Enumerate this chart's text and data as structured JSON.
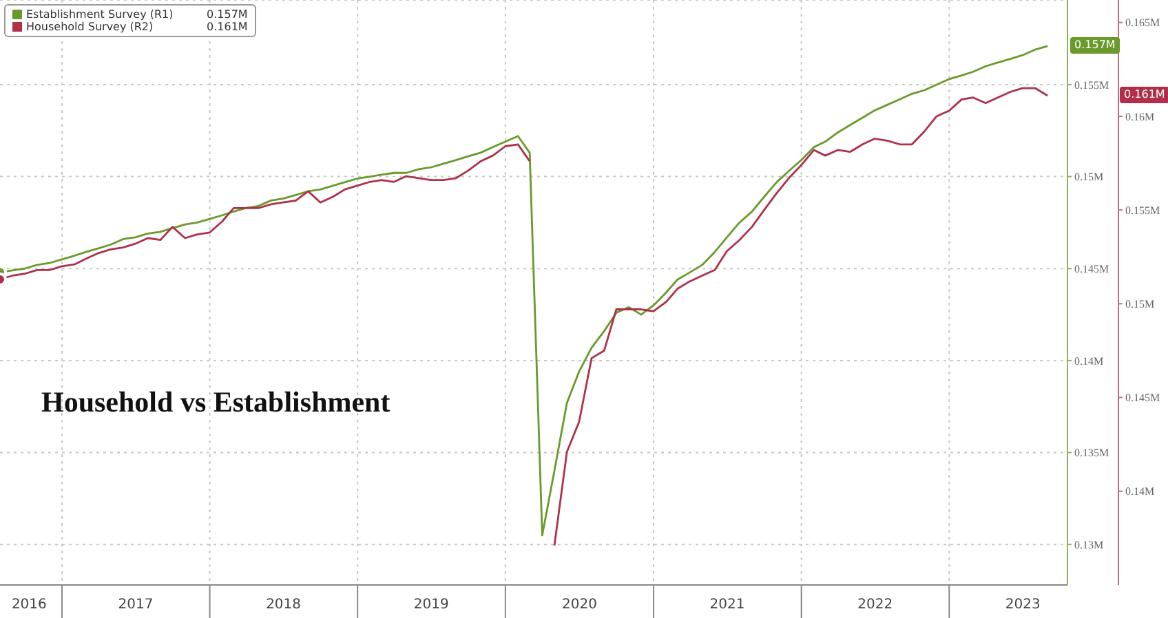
{
  "chart_data": {
    "type": "line",
    "title": "Household vs Establishment",
    "x": [
      "2016-08",
      "2016-09",
      "2016-10",
      "2016-11",
      "2016-12",
      "2017-01",
      "2017-02",
      "2017-03",
      "2017-04",
      "2017-05",
      "2017-06",
      "2017-07",
      "2017-08",
      "2017-09",
      "2017-10",
      "2017-11",
      "2017-12",
      "2018-01",
      "2018-02",
      "2018-03",
      "2018-04",
      "2018-05",
      "2018-06",
      "2018-07",
      "2018-08",
      "2018-09",
      "2018-10",
      "2018-11",
      "2018-12",
      "2019-01",
      "2019-02",
      "2019-03",
      "2019-04",
      "2019-05",
      "2019-06",
      "2019-07",
      "2019-08",
      "2019-09",
      "2019-10",
      "2019-11",
      "2019-12",
      "2020-01",
      "2020-02",
      "2020-03",
      "2020-04",
      "2020-05",
      "2020-06",
      "2020-07",
      "2020-08",
      "2020-09",
      "2020-10",
      "2020-11",
      "2020-12",
      "2021-01",
      "2021-02",
      "2021-03",
      "2021-04",
      "2021-05",
      "2021-06",
      "2021-07",
      "2021-08",
      "2021-09",
      "2021-10",
      "2021-11",
      "2021-12",
      "2022-01",
      "2022-02",
      "2022-03",
      "2022-04",
      "2022-05",
      "2022-06",
      "2022-07",
      "2022-08",
      "2022-09",
      "2022-10",
      "2022-11",
      "2022-12",
      "2023-01",
      "2023-02",
      "2023-03",
      "2023-04",
      "2023-05",
      "2023-06",
      "2023-07",
      "2023-08",
      "2023-09"
    ],
    "series": [
      {
        "name": "Establishment Survey (R1)",
        "color": "#6a9a2a",
        "axis": "y",
        "values": [
          0.1448,
          0.1449,
          0.145,
          0.1452,
          0.1453,
          0.1455,
          0.1457,
          0.1459,
          0.1461,
          0.1463,
          0.1466,
          0.1467,
          0.1469,
          0.147,
          0.1472,
          0.1474,
          0.1475,
          0.1477,
          0.1479,
          0.1481,
          0.1483,
          0.1484,
          0.1487,
          0.1488,
          0.149,
          0.1492,
          0.1493,
          0.1495,
          0.1497,
          0.1499,
          0.15,
          0.1501,
          0.1502,
          0.1502,
          0.1504,
          0.1505,
          0.1507,
          0.1509,
          0.1511,
          0.1513,
          0.1516,
          0.1519,
          0.1522,
          0.1513,
          0.1305,
          0.134,
          0.1377,
          0.1394,
          0.1407,
          0.1416,
          0.1426,
          0.1429,
          0.1425,
          0.143,
          0.1437,
          0.1444,
          0.1448,
          0.1452,
          0.1459,
          0.1467,
          0.1475,
          0.1481,
          0.1489,
          0.1497,
          0.1503,
          0.1509,
          0.1516,
          0.1519,
          0.1524,
          0.1528,
          0.1532,
          0.1536,
          0.1539,
          0.1542,
          0.1545,
          0.1547,
          0.155,
          0.1553,
          0.1555,
          0.1557,
          0.156,
          0.1562,
          0.1564,
          0.1566,
          0.1569,
          0.1571
        ]
      },
      {
        "name": "Household Survey (R2)",
        "color": "#b0304a",
        "axis": "y2",
        "values": [
          0.1513,
          0.1515,
          0.1516,
          0.1518,
          0.1518,
          0.152,
          0.1521,
          0.1524,
          0.1527,
          0.1529,
          0.153,
          0.1532,
          0.1535,
          0.1534,
          0.1541,
          0.1535,
          0.1537,
          0.1538,
          0.1544,
          0.1551,
          0.1551,
          0.1551,
          0.1553,
          0.1554,
          0.1555,
          0.156,
          0.1554,
          0.1557,
          0.1561,
          0.1563,
          0.1565,
          0.1566,
          0.1565,
          0.1568,
          0.1567,
          0.1566,
          0.1566,
          0.1567,
          0.1571,
          0.1576,
          0.1579,
          0.1584,
          0.1585,
          0.1576,
          null,
          0.1371,
          0.1421,
          0.1437,
          0.1471,
          0.1475,
          0.1497,
          0.1497,
          0.1497,
          0.1496,
          0.1501,
          0.1508,
          0.1512,
          0.1515,
          0.1518,
          0.1528,
          0.1534,
          0.1541,
          0.155,
          0.1559,
          0.1567,
          0.1574,
          0.1582,
          0.1579,
          0.1582,
          0.1581,
          0.1585,
          0.1588,
          0.1587,
          0.1585,
          0.1585,
          0.1592,
          0.16,
          0.1603,
          0.1609,
          0.161,
          0.1607,
          0.161,
          0.1613,
          0.1615,
          0.1615,
          0.1611
        ]
      }
    ],
    "annotations": [
      "0.157M",
      "0.161M"
    ],
    "xlim": [
      "2016-08-01",
      "2023-10-20"
    ],
    "xticks": [
      {
        "value": "2016-10-12",
        "label": "2016"
      },
      {
        "value": "2017-01-01",
        "label": null
      },
      {
        "value": "2017-07-02",
        "label": "2017"
      },
      {
        "value": "2018-01-01",
        "label": null
      },
      {
        "value": "2018-07-02",
        "label": "2018"
      },
      {
        "value": "2019-01-01",
        "label": null
      },
      {
        "value": "2019-07-02",
        "label": "2019"
      },
      {
        "value": "2020-01-01",
        "label": null
      },
      {
        "value": "2020-07-02",
        "label": "2020"
      },
      {
        "value": "2021-01-01",
        "label": null
      },
      {
        "value": "2021-07-02",
        "label": "2021"
      },
      {
        "value": "2022-01-01",
        "label": null
      },
      {
        "value": "2022-07-02",
        "label": "2022"
      },
      {
        "value": "2023-01-01",
        "label": null
      },
      {
        "value": "2023-07-02",
        "label": "2023"
      }
    ],
    "ylim": [
      0.1278,
      0.1596
    ],
    "yticks": [
      {
        "value": 0.13,
        "label": "0.13M"
      },
      {
        "value": 0.135,
        "label": "0.135M"
      },
      {
        "value": 0.14,
        "label": "0.14M"
      },
      {
        "value": 0.145,
        "label": "0.145M"
      },
      {
        "value": 0.15,
        "label": "0.15M"
      },
      {
        "value": 0.155,
        "label": "0.155M"
      }
    ],
    "y2lim": [
      0.135,
      0.1662
    ],
    "y2ticks": [
      {
        "value": 0.14,
        "label": "0.14M"
      },
      {
        "value": 0.145,
        "label": "0.145M"
      },
      {
        "value": 0.15,
        "label": "0.15M"
      },
      {
        "value": 0.155,
        "label": "0.155M"
      },
      {
        "value": 0.16,
        "label": "0.16M"
      },
      {
        "value": 0.165,
        "label": "0.165M"
      }
    ],
    "grid": true,
    "legend": "top left",
    "marker": "none",
    "line_style": "solid"
  }
}
